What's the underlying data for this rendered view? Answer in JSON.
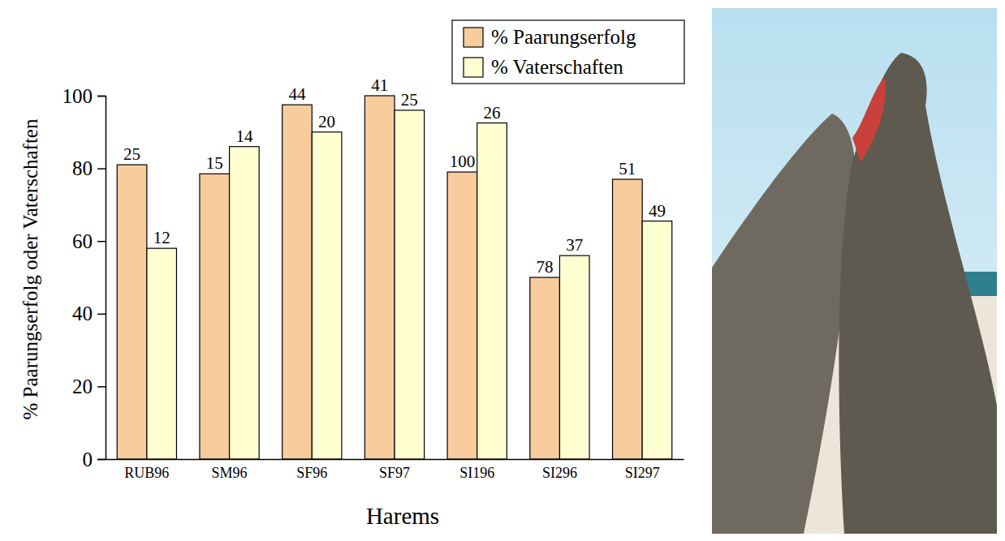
{
  "chart_data": {
    "type": "bar",
    "x_label": "Harems",
    "y_label": "% Paarungserfolg oder Vaterschaften",
    "categories": [
      "RUB96",
      "SM96",
      "SF96",
      "SF97",
      "SI196",
      "SI296",
      "SI297"
    ],
    "series": [
      {
        "name": "% Paarungserfolg",
        "color": "#f9cc9d",
        "values": [
          81,
          78.5,
          97.5,
          100,
          79,
          50,
          77
        ],
        "n": [
          25,
          15,
          44,
          41,
          100,
          78,
          51
        ]
      },
      {
        "name": "% Vaterschaften",
        "color": "#ffffd2",
        "values": [
          58,
          86,
          90,
          96,
          92.5,
          56,
          65.5
        ],
        "n": [
          12,
          14,
          20,
          25,
          26,
          37,
          49
        ]
      }
    ],
    "ylim": [
      0,
      100
    ],
    "yticks": [
      0,
      20,
      40,
      60,
      80,
      100
    ],
    "grid": false,
    "legend": "upper right"
  }
}
